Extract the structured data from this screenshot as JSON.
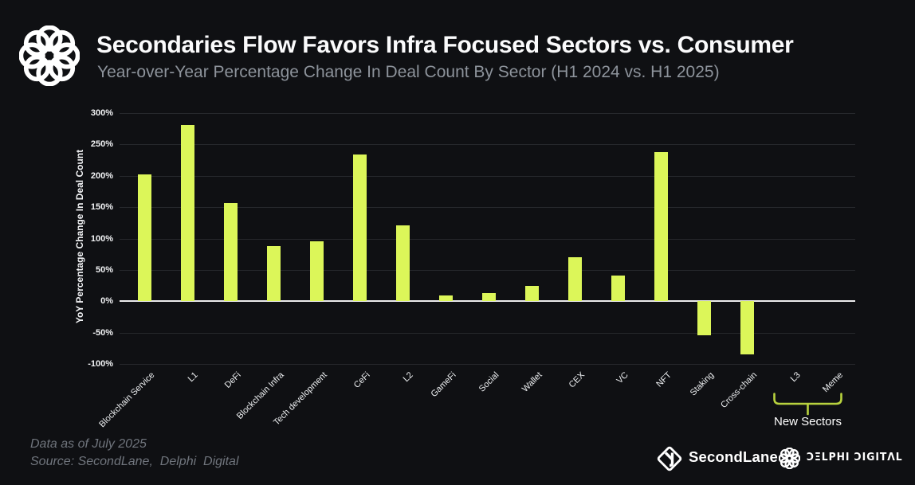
{
  "chart_data": {
    "type": "bar",
    "title": "Secondaries Flow Favors Infra Focused Sectors vs. Consumer",
    "subtitle": "Year-over-Year Percentage Change In Deal Count By Sector (H1 2024 vs. H1 2025)",
    "ylabel": "YoY Percentage Change In Deal Count",
    "xlabel": "",
    "ylim": [
      -100,
      300
    ],
    "yticks": [
      300,
      250,
      200,
      150,
      100,
      50,
      0,
      -50,
      -100
    ],
    "ytick_suffix": "%",
    "grid": true,
    "legend": false,
    "bar_color": "#dcf659",
    "categories": [
      "Blockchain Service",
      "L1",
      "DeFi",
      "Blockchain Infra",
      "Tech development",
      "CeFi",
      "L2",
      "GameFi",
      "Social",
      "Wallet",
      "CEX",
      "VC",
      "NFT",
      "Staking",
      "Cross-chain",
      "L3",
      "Meme"
    ],
    "values": [
      202,
      281,
      156,
      88,
      96,
      234,
      121,
      9,
      13,
      25,
      70,
      41,
      238,
      -54,
      -85,
      0,
      0
    ],
    "annotation": {
      "label": "New Sectors",
      "categories": [
        "L3",
        "Meme"
      ],
      "color": "#b8d23e"
    }
  },
  "footer": {
    "data_as_of": "Data as of July 2025",
    "source": "Source: SecondLane,  Delphi  Digital",
    "secondlane_label": "SecondLane",
    "delphi_wordmark": "ƆΞLPHI ƆIGITΛL"
  }
}
